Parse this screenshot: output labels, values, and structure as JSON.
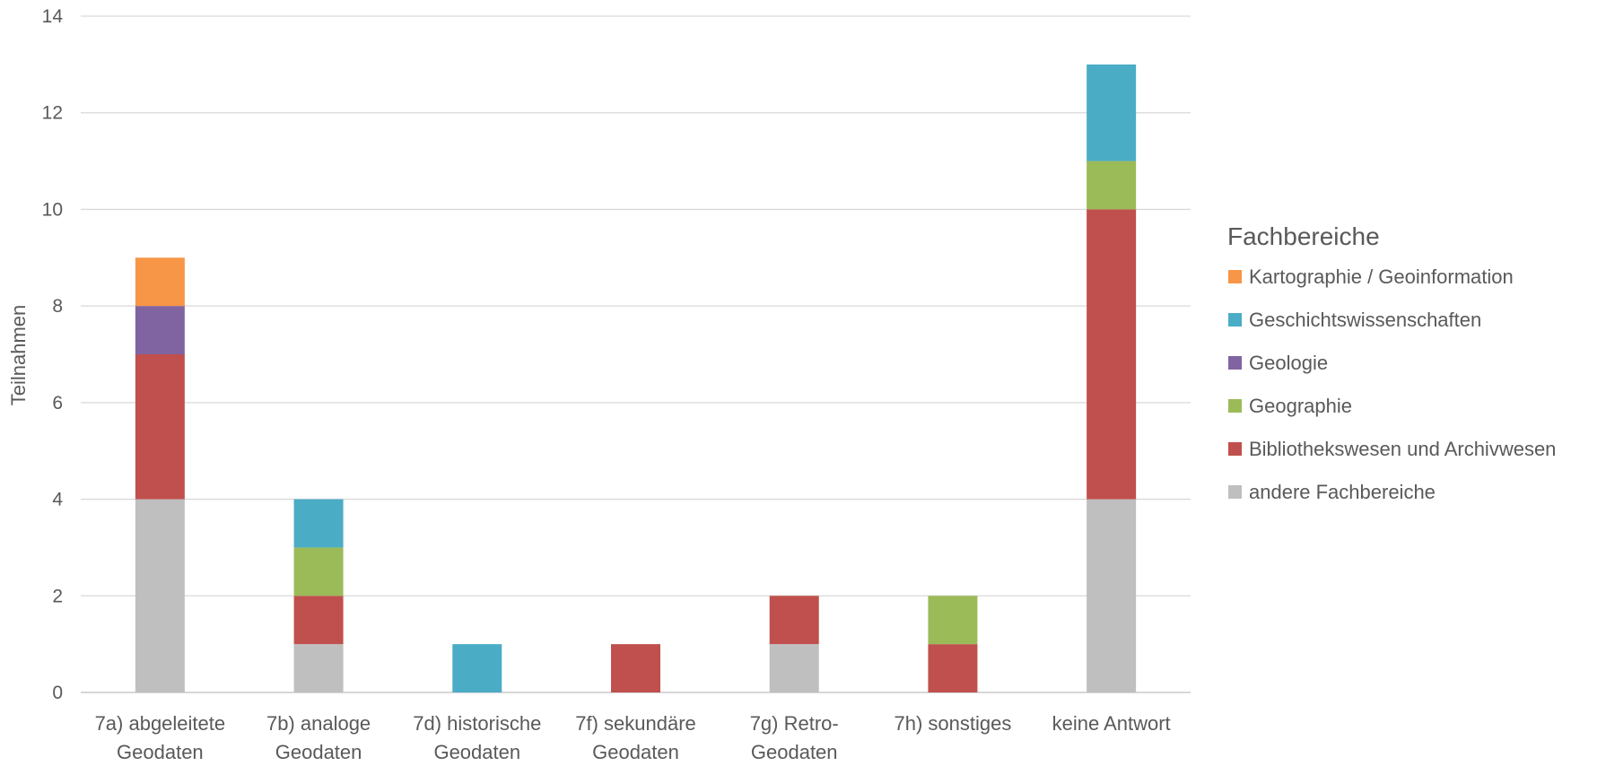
{
  "chart_data": {
    "type": "bar",
    "stacked": true,
    "ylabel": "Teilnahmen",
    "ylim": [
      0,
      14
    ],
    "yticks": [
      0,
      2,
      4,
      6,
      8,
      10,
      12,
      14
    ],
    "grid": true,
    "legend_title": "Fachbereiche",
    "legend_position": "right",
    "categories": [
      [
        "7a) abgeleitete",
        "Geodaten"
      ],
      [
        "7b) analoge",
        "Geodaten"
      ],
      [
        "7d) historische",
        "Geodaten"
      ],
      [
        "7f) sekundäre",
        "Geodaten"
      ],
      [
        "7g) Retro-",
        "Geodaten"
      ],
      [
        "7h) sonstiges"
      ],
      [
        "keine Antwort"
      ]
    ],
    "series": [
      {
        "name": "andere Fachbereiche",
        "color": "#bfbfbf",
        "values": [
          4,
          1,
          0,
          0,
          1,
          0,
          4
        ]
      },
      {
        "name": "Bibliothekswesen und Archivwesen",
        "color": "#c0504d",
        "values": [
          3,
          1,
          0,
          1,
          1,
          1,
          6
        ]
      },
      {
        "name": "Geographie",
        "color": "#9bbb59",
        "values": [
          0,
          1,
          0,
          0,
          0,
          1,
          1
        ]
      },
      {
        "name": "Geologie",
        "color": "#8064a2",
        "values": [
          1,
          0,
          0,
          0,
          0,
          0,
          0
        ]
      },
      {
        "name": "Geschichtswissenschaften",
        "color": "#4bacc6",
        "values": [
          0,
          1,
          1,
          0,
          0,
          0,
          2
        ]
      },
      {
        "name": "Kartographie / Geoinformation",
        "color": "#f79646",
        "values": [
          1,
          0,
          0,
          0,
          0,
          0,
          0
        ]
      }
    ],
    "legend_order": [
      "Kartographie / Geoinformation",
      "Geschichtswissenschaften",
      "Geologie",
      "Geographie",
      "Bibliothekswesen und Archivwesen",
      "andere Fachbereiche"
    ]
  },
  "colors": {
    "grid": "#d9d9d9",
    "axis": "#bfbfbf",
    "text": "#595959"
  }
}
